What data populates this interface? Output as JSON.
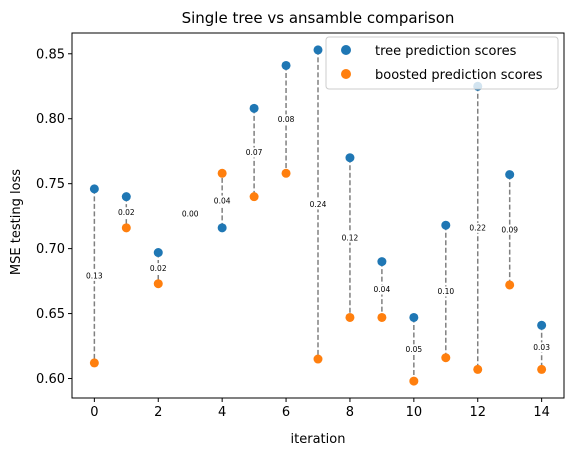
{
  "chart_data": {
    "type": "scatter",
    "title": "Single tree vs ansamble comparison",
    "xlabel": "iteration",
    "ylabel": "MSE testing loss",
    "xlim": [
      -0.7,
      14.7
    ],
    "ylim": [
      0.585,
      0.866
    ],
    "xticks": [
      0,
      2,
      4,
      6,
      8,
      10,
      12,
      14
    ],
    "xtick_labels": [
      "0",
      "2",
      "4",
      "6",
      "8",
      "10",
      "12",
      "14"
    ],
    "yticks": [
      0.6,
      0.65,
      0.7,
      0.75,
      0.8,
      0.85
    ],
    "ytick_labels": [
      "0.60",
      "0.65",
      "0.70",
      "0.75",
      "0.80",
      "0.85"
    ],
    "legend_position": "top-right",
    "series": [
      {
        "name": "tree prediction scores",
        "color": "#1f77b4",
        "x": [
          0,
          1,
          2,
          3,
          4,
          5,
          6,
          7,
          8,
          9,
          10,
          11,
          12,
          13,
          14
        ],
        "values": [
          0.746,
          0.74,
          0.697,
          null,
          0.716,
          0.808,
          0.841,
          0.853,
          0.77,
          0.69,
          0.647,
          0.718,
          0.825,
          0.757,
          0.641
        ]
      },
      {
        "name": "boosted prediction scores",
        "color": "#ff7f0e",
        "x": [
          0,
          1,
          2,
          3,
          4,
          5,
          6,
          7,
          8,
          9,
          10,
          11,
          12,
          13,
          14
        ],
        "values": [
          0.612,
          0.716,
          0.673,
          null,
          0.758,
          0.74,
          0.758,
          0.615,
          0.647,
          0.647,
          0.598,
          0.616,
          0.607,
          0.672,
          0.607
        ]
      }
    ],
    "connector_color": "#808080",
    "differences": [
      {
        "x": 0,
        "label": "0.13"
      },
      {
        "x": 1,
        "label": "0.02"
      },
      {
        "x": 2,
        "label": "0.02"
      },
      {
        "x": 3,
        "label": "0.00",
        "y": 0.727
      },
      {
        "x": 4,
        "label": "0.04"
      },
      {
        "x": 5,
        "label": "0.07"
      },
      {
        "x": 6,
        "label": "0.08"
      },
      {
        "x": 7,
        "label": "0.24"
      },
      {
        "x": 8,
        "label": "0.12"
      },
      {
        "x": 9,
        "label": "0.04"
      },
      {
        "x": 10,
        "label": "0.05"
      },
      {
        "x": 11,
        "label": "0.10"
      },
      {
        "x": 12,
        "label": "0.22"
      },
      {
        "x": 13,
        "label": "0.09"
      },
      {
        "x": 14,
        "label": "0.03"
      }
    ]
  }
}
